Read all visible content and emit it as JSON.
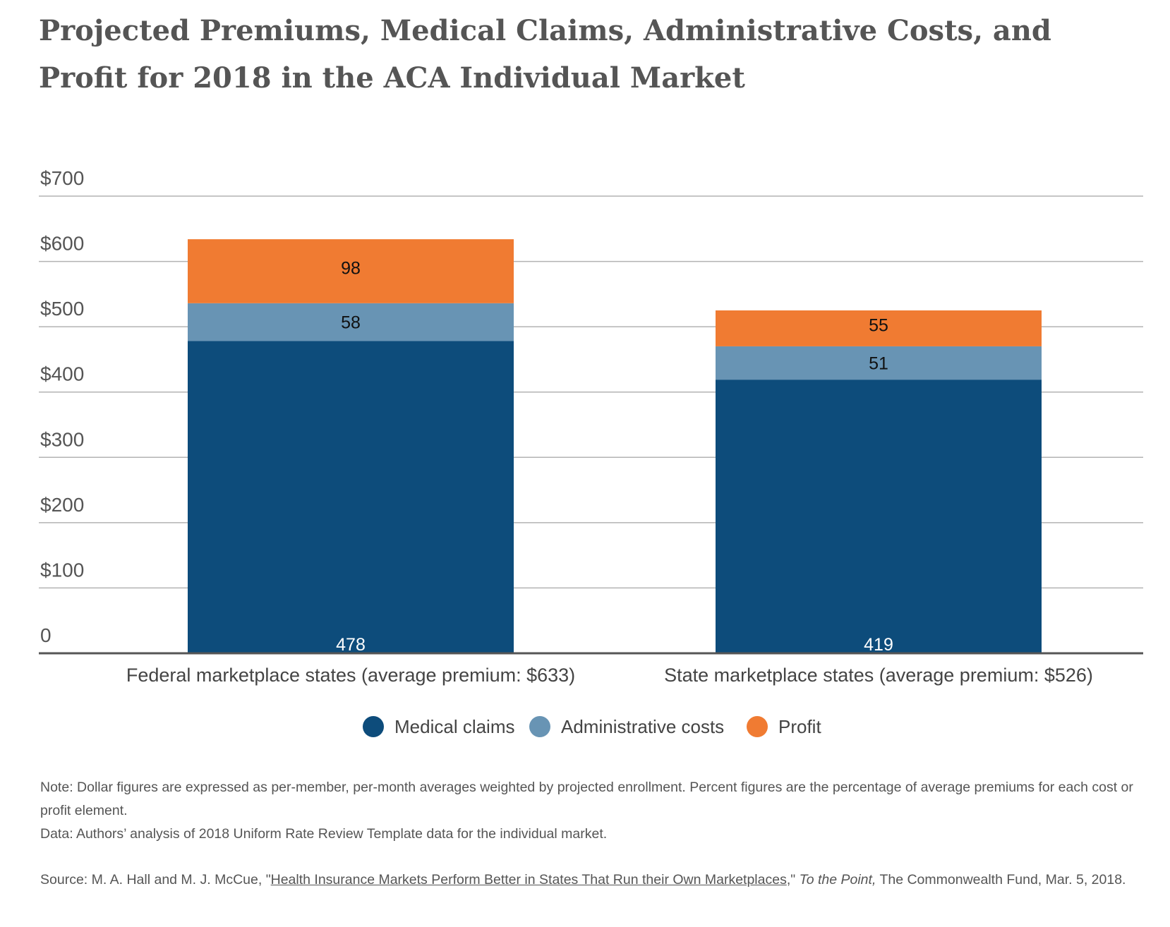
{
  "title": "Projected Premiums, Medical Claims, Administrative Costs, and Profit for 2018 in the ACA Individual Market",
  "chart_data": {
    "type": "bar",
    "stacked": true,
    "categories": [
      "Federal marketplace states (average premium: $633)",
      "State marketplace states (average premium: $526)"
    ],
    "series": [
      {
        "name": "Medical claims",
        "values": [
          478,
          419
        ],
        "color": "#0d4c7b",
        "label_color": "#ffffff",
        "label_position": "bottom"
      },
      {
        "name": "Administrative costs",
        "values": [
          58,
          51
        ],
        "color": "#6894b4",
        "label_color": "#111111",
        "label_position": "center"
      },
      {
        "name": "Profit",
        "values": [
          98,
          55
        ],
        "color": "#f07b32",
        "label_color": "#111111",
        "label_position": "center"
      }
    ],
    "yticks": [
      {
        "value": 0,
        "label": "0"
      },
      {
        "value": 100,
        "label": "$100"
      },
      {
        "value": 200,
        "label": "$200"
      },
      {
        "value": 300,
        "label": "$300"
      },
      {
        "value": 400,
        "label": "$400"
      },
      {
        "value": 500,
        "label": "$500"
      },
      {
        "value": 600,
        "label": "$600"
      },
      {
        "value": 700,
        "label": "$700"
      }
    ],
    "ylim": [
      0,
      700
    ],
    "grid": true,
    "legend": "bottom-center",
    "xlabel": "",
    "ylabel": ""
  },
  "notes": {
    "note": "Note: Dollar figures are expressed as per-member, per-month averages weighted by projected enrollment. Percent figures are the percentage of average premiums for each cost or profit element.",
    "data": "Data: Authors’ analysis of 2018 Uniform Rate Review Template data for the individual market.",
    "source_prefix": "Source: M. A. Hall and M. J. McCue, \"",
    "source_link": "Health Insurance Markets Perform Better in States That Run their Own Marketplaces",
    "source_mid": ",\" ",
    "source_italic": "To the Point,",
    "source_suffix": " The Commonwealth Fund, Mar. 5, 2018."
  }
}
